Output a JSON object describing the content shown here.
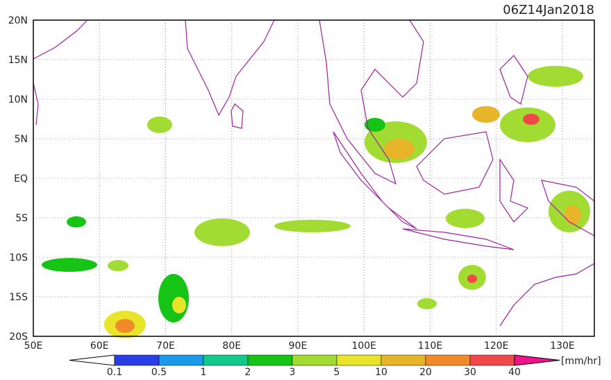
{
  "title": "06Z14Jan2018",
  "lat_labels": [
    "20N",
    "15N",
    "10N",
    "5N",
    "EQ",
    "5S",
    "10S",
    "15S",
    "20S"
  ],
  "lon_labels": [
    "50E",
    "60E",
    "70E",
    "80E",
    "90E",
    "100E",
    "110E",
    "120E",
    "130E"
  ],
  "colorbar": {
    "labels": [
      "0.1",
      "0.5",
      "1",
      "2",
      "3",
      "5",
      "10",
      "20",
      "30",
      "40"
    ],
    "colors": [
      "#ffffff",
      "#2a3ee6",
      "#1a9ae8",
      "#12c88c",
      "#16c416",
      "#a2dc32",
      "#e8e42a",
      "#e8b42a",
      "#f08a2a",
      "#f04848",
      "#f0148c"
    ],
    "unit": "[mm/hr]"
  }
}
